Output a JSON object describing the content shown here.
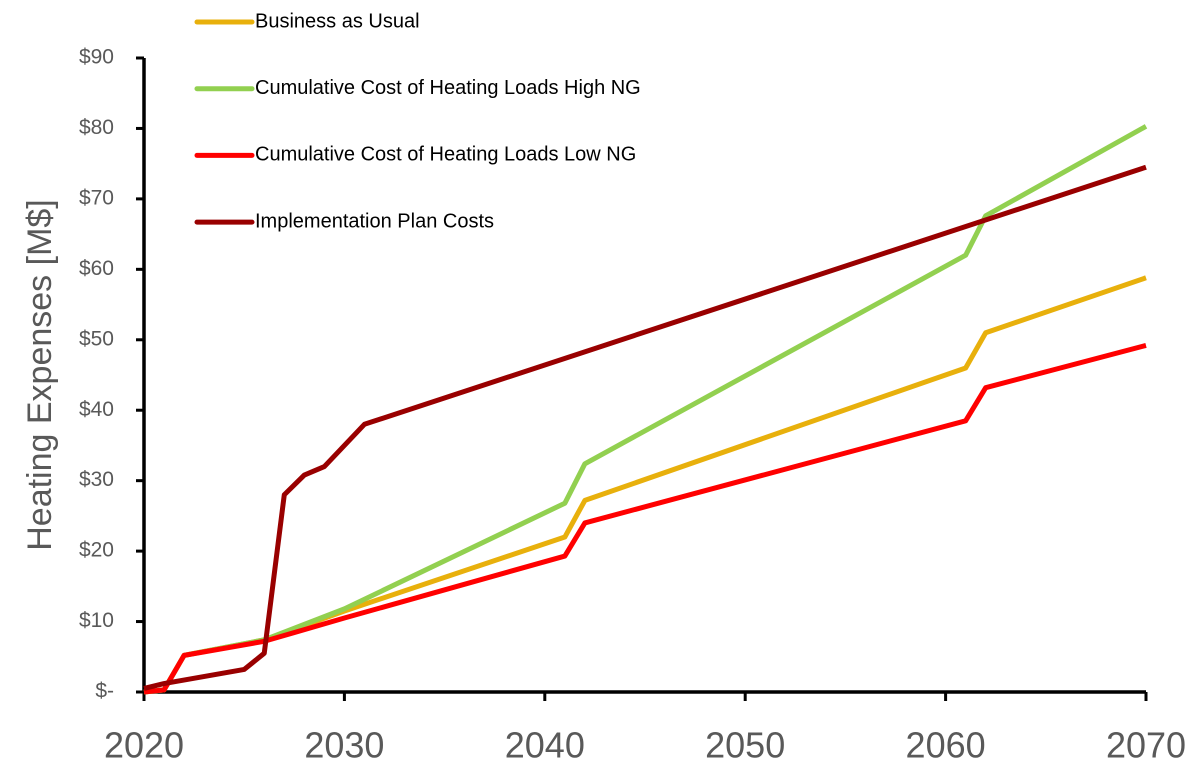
{
  "chart_data": {
    "type": "line",
    "y_label": "Heating Expenses [M$]",
    "xlim": [
      2020,
      2070
    ],
    "xticks": [
      2020,
      2030,
      2040,
      2050,
      2060,
      2070
    ],
    "ylim": [
      0,
      90
    ],
    "yticks": [
      {
        "value": 0,
        "label": "$-"
      },
      {
        "value": 10,
        "label": "$10"
      },
      {
        "value": 20,
        "label": "$20"
      },
      {
        "value": 30,
        "label": "$30"
      },
      {
        "value": 40,
        "label": "$40"
      },
      {
        "value": 50,
        "label": "$50"
      },
      {
        "value": 60,
        "label": "$60"
      },
      {
        "value": 70,
        "label": "$70"
      },
      {
        "value": 80,
        "label": "$80"
      },
      {
        "value": 90,
        "label": "$90"
      }
    ],
    "legend": "top-left",
    "series": [
      {
        "name": "Business as Usual",
        "color": "#e8b00c",
        "x": [
          2020,
          2021,
          2022,
          2026,
          2030,
          2041,
          2042,
          2061,
          2062,
          2070
        ],
        "values": [
          0,
          0.3,
          5.2,
          7.4,
          11.5,
          22,
          27.2,
          46,
          51,
          58.8
        ]
      },
      {
        "name": "Cumulative Cost of Heating Loads High NG",
        "color": "#92d050",
        "x": [
          2020,
          2021,
          2022,
          2026,
          2030,
          2041,
          2042,
          2061,
          2062,
          2070
        ],
        "values": [
          0,
          0.3,
          5.2,
          7.4,
          11.8,
          26.8,
          32.4,
          62,
          67.6,
          80.3
        ]
      },
      {
        "name": "Cumulative Cost of Heating Loads Low NG",
        "color": "#ff0000",
        "x": [
          2020,
          2021,
          2022,
          2026,
          2030,
          2041,
          2042,
          2061,
          2062,
          2070
        ],
        "values": [
          0,
          0.3,
          5.2,
          7.2,
          10.5,
          19.3,
          24,
          38.5,
          43.2,
          49.2
        ]
      },
      {
        "name": "Implementation Plan Costs",
        "color": "#990000",
        "x": [
          2020,
          2021,
          2025,
          2026,
          2027,
          2028,
          2029,
          2031,
          2070
        ],
        "values": [
          0.5,
          1.2,
          3.2,
          5.5,
          28,
          30.8,
          32,
          38,
          74.5
        ]
      }
    ]
  }
}
